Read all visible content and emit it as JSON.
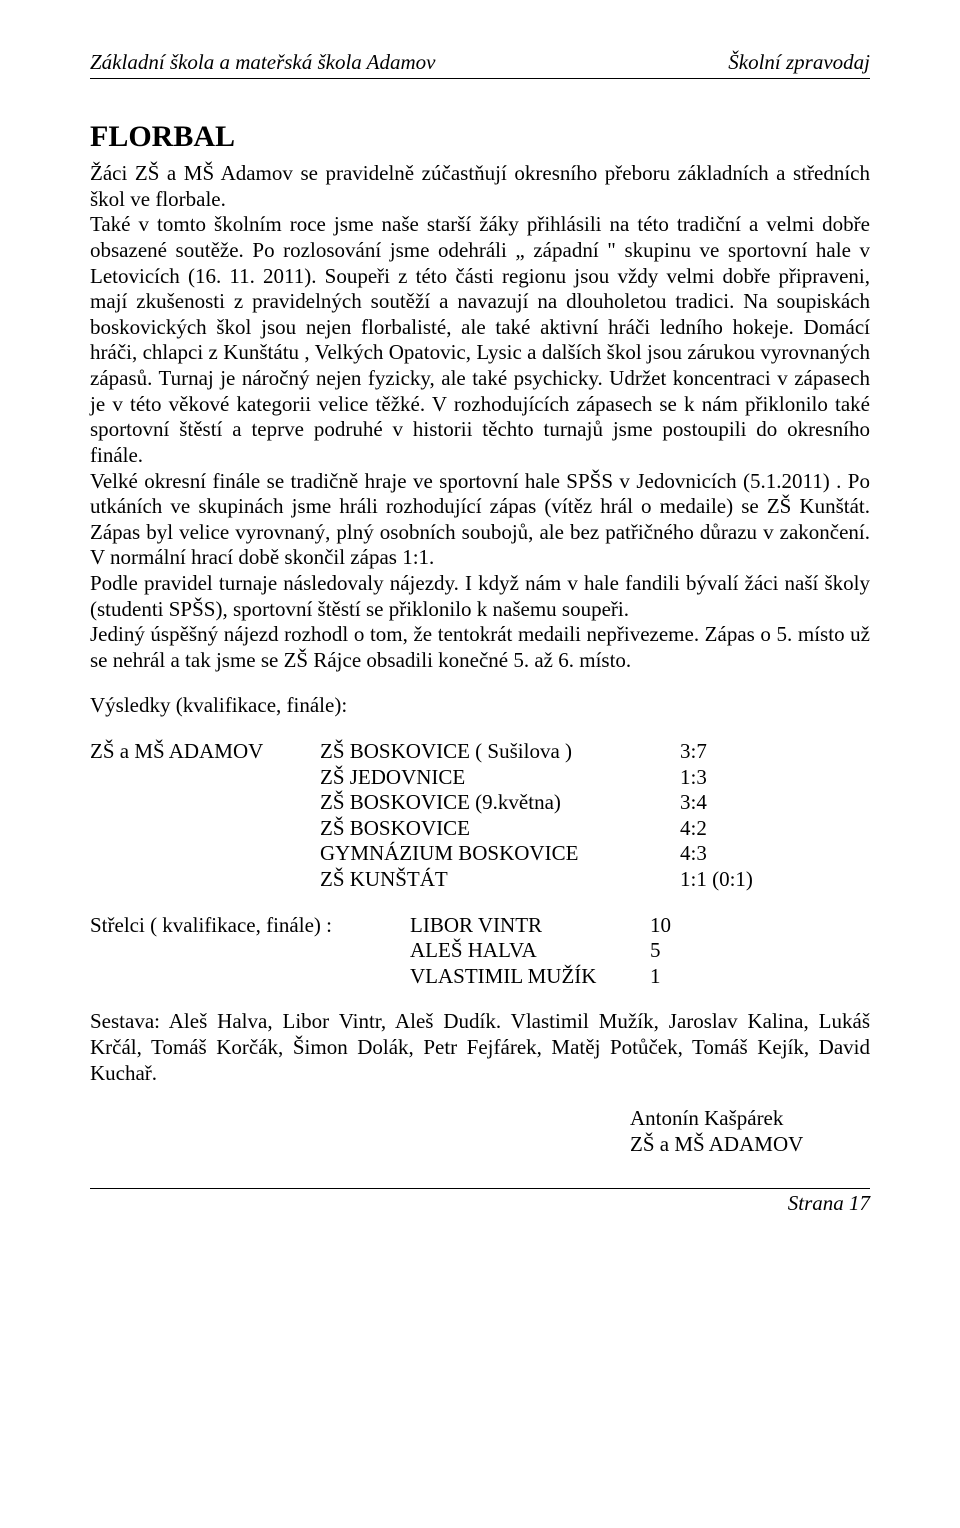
{
  "header": {
    "left": "Základní škola a mateřská škola Adamov",
    "right": "Školní zpravodaj"
  },
  "title": "FLORBAL",
  "body": "Žáci ZŠ a MŠ Adamov se pravidelně zúčastňují okresního přeboru základních a středních škol ve florbale.\nTaké v tomto školním roce jsme naše starší žáky přihlásili na této tradiční a velmi dobře obsazené soutěže. Po rozlosování jsme odehráli „ západní \" skupinu ve sportovní hale v Letovicích (16. 11. 2011). Soupeři z této části regionu jsou vždy velmi dobře připraveni, mají zkušenosti z pravidelných soutěží a navazují na dlouholetou tradici. Na soupiskách boskovických škol jsou nejen florbalisté, ale také aktivní hráči ledního hokeje. Domácí hráči, chlapci z Kunštátu , Velkých Opatovic, Lysic a dalších škol jsou zárukou vyrovnaných zápasů. Turnaj je náročný nejen fyzicky, ale také psychicky. Udržet koncentraci v zápasech je v této věkové kategorii velice těžké. V rozhodujících zápasech se k nám přiklonilo také sportovní štěstí a teprve podruhé v historii těchto turnajů jsme postoupili do okresního finále.\nVelké okresní finále se tradičně hraje ve sportovní hale SPŠS v Jedovnicích (5.1.2011) . Po utkáních ve skupinách jsme hráli rozhodující zápas (vítěz hrál o medaile) se ZŠ  Kunštát. Zápas byl velice vyrovnaný, plný osobních soubojů, ale bez patřičného důrazu v zakončení. V normální hrací době skončil zápas 1:1.\nPodle pravidel turnaje následovaly nájezdy. I když nám v hale fandili bývalí žáci naší školy (studenti SPŠS), sportovní štěstí se přiklonilo k našemu soupeři.\nJediný úspěšný nájezd rozhodl o tom, že tentokrát medaili nepřivezeme. Zápas o 5. místo už se nehrál a tak jsme se ZŠ Rájce obsadili konečné 5. až 6. místo.",
  "results": {
    "label": "Výsledky (kvalifikace, finále):",
    "team": "ZŠ a MŠ ADAMOV",
    "rows": [
      {
        "opponent": "ZŠ BOSKOVICE ( Sušilova )",
        "score": "3:7"
      },
      {
        "opponent": "ZŠ JEDOVNICE",
        "score": "1:3"
      },
      {
        "opponent": "ZŠ BOSKOVICE (9.května)",
        "score": "3:4"
      },
      {
        "opponent": " ZŠ BOSKOVICE",
        "score": "4:2"
      },
      {
        "opponent": "GYMNÁZIUM BOSKOVICE",
        "score": "4:3"
      },
      {
        "opponent": "ZŠ KUNŠTÁT",
        "score": "1:1 (0:1)"
      }
    ]
  },
  "shooters": {
    "label": "Střelci ( kvalifikace, finále) :",
    "rows": [
      {
        "name": "LIBOR VINTR",
        "count": "10"
      },
      {
        "name": "ALEŠ HALVA",
        "count": "5"
      },
      {
        "name": "VLASTIMIL MUŽÍK",
        "count": "1"
      }
    ]
  },
  "lineup": "Sestava: Aleš Halva, Libor Vintr, Aleš Dudík. Vlastimil Mužík, Jaroslav Kalina, Lukáš Krčál, Tomáš Korčák, Šimon Dolák, Petr Fejfárek, Matěj Potůček, Tomáš Kejík, David Kuchař.",
  "signature": {
    "name": "Antonín Kašpárek",
    "org": "ZŠ a MŠ ADAMOV"
  },
  "footer": "Strana 17"
}
